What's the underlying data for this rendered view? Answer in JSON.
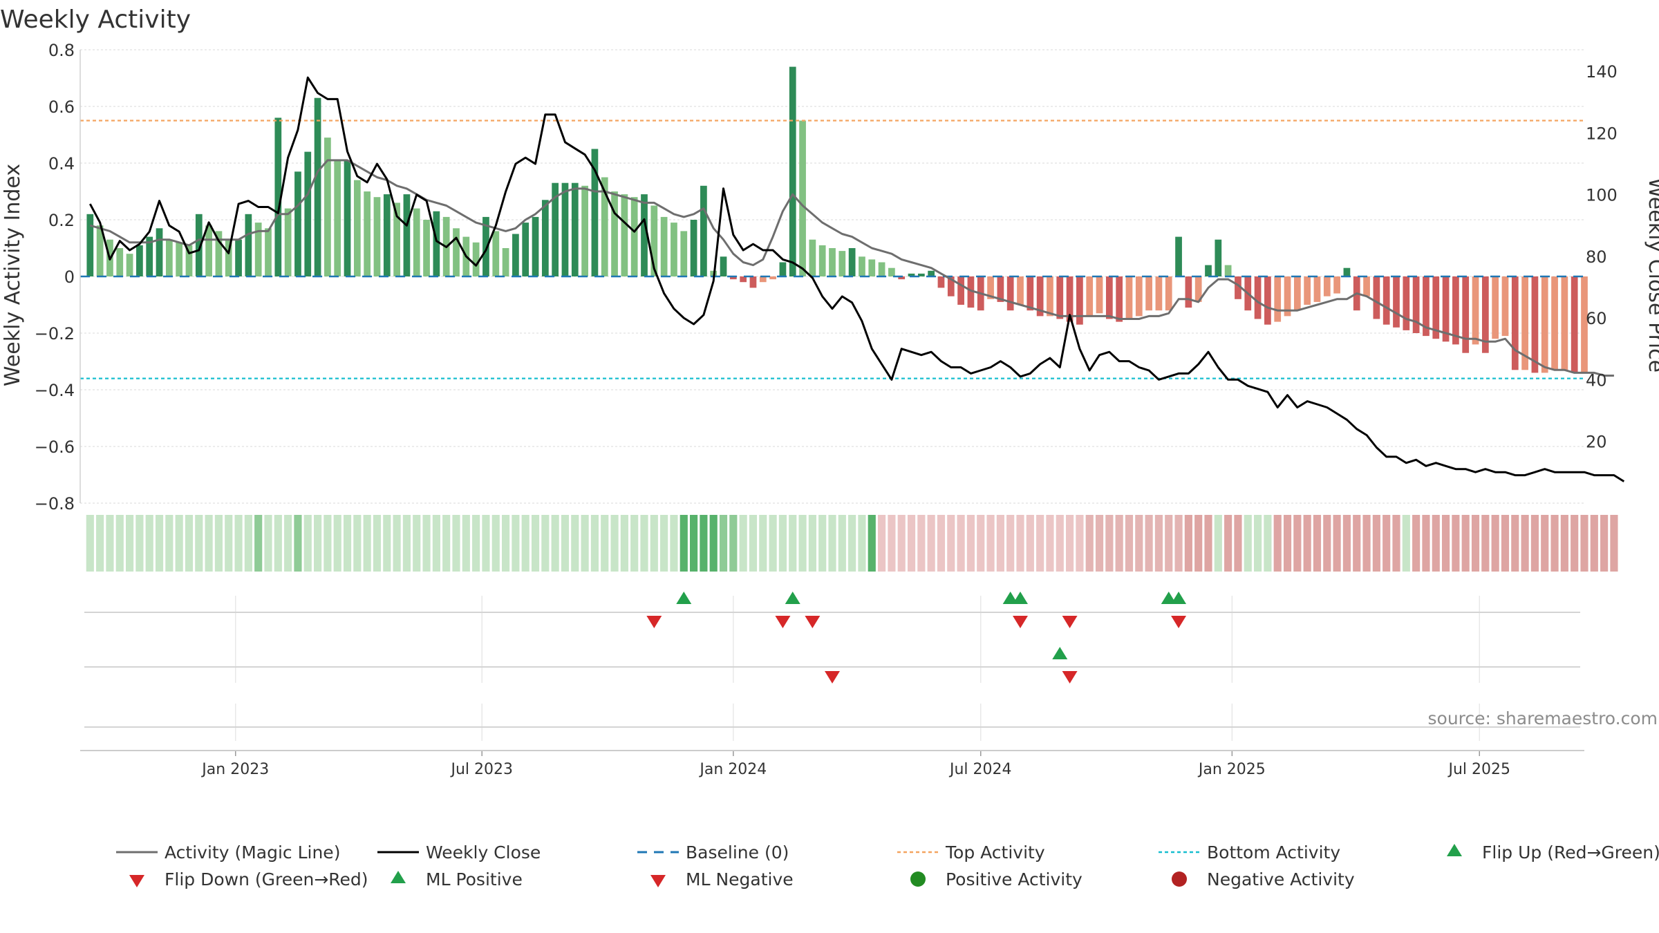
{
  "chart_data": {
    "type": "bar",
    "title": "Weekly Activity",
    "ylabel_left": "Weekly Activity Index",
    "ylabel_right": "Weekly Close Price",
    "source": "source: sharemaestro.com",
    "ylim_left": [
      -0.8,
      0.8
    ],
    "ylim_right": [
      -0.0465,
      147
    ],
    "yticks_left": [
      "0.8",
      "0.6",
      "0.4",
      "0.2",
      "0",
      "−0.2",
      "−0.4",
      "−0.6",
      "−0.8"
    ],
    "yticks_left_values": [
      0.8,
      0.6,
      0.4,
      0.2,
      0,
      -0.2,
      -0.4,
      -0.6,
      -0.8
    ],
    "yticks_right": [
      "140",
      "120",
      "100",
      "80",
      "60",
      "40",
      "20"
    ],
    "yticks_right_values": [
      140,
      120,
      100,
      80,
      60,
      40,
      20
    ],
    "x_range_weeks": [
      0,
      151
    ],
    "xticks": [
      {
        "label": "Jan 2023",
        "week": 14.7
      },
      {
        "label": "Jul 2023",
        "week": 39.6
      },
      {
        "label": "Jan 2024",
        "week": 65.0
      },
      {
        "label": "Jul 2024",
        "week": 90.0
      },
      {
        "label": "Jan 2025",
        "week": 115.4
      },
      {
        "label": "Jul 2025",
        "week": 140.4
      }
    ],
    "top_activity": 0.55,
    "bottom_activity": -0.36,
    "baseline": 0,
    "weekly_activity": [
      0.22,
      0.18,
      0.13,
      0.1,
      0.08,
      0.11,
      0.14,
      0.17,
      0.13,
      0.12,
      0.11,
      0.22,
      0.18,
      0.16,
      0.13,
      0.13,
      0.22,
      0.19,
      0.17,
      0.56,
      0.24,
      0.37,
      0.44,
      0.63,
      0.49,
      0.41,
      0.41,
      0.34,
      0.3,
      0.28,
      0.29,
      0.26,
      0.29,
      0.24,
      0.2,
      0.23,
      0.21,
      0.17,
      0.14,
      0.12,
      0.21,
      0.16,
      0.1,
      0.15,
      0.19,
      0.21,
      0.27,
      0.33,
      0.33,
      0.33,
      0.32,
      0.45,
      0.35,
      0.3,
      0.29,
      0.28,
      0.29,
      0.25,
      0.21,
      0.19,
      0.16,
      0.2,
      0.32,
      0.02,
      0.07,
      -0.01,
      -0.02,
      -0.04,
      -0.02,
      -0.01,
      0.05,
      0.74,
      0.55,
      0.13,
      0.11,
      0.1,
      0.09,
      0.1,
      0.07,
      0.06,
      0.05,
      0.03,
      -0.01,
      0.01,
      0.01,
      0.02,
      -0.04,
      -0.07,
      -0.1,
      -0.11,
      -0.12,
      -0.08,
      -0.09,
      -0.12,
      -0.1,
      -0.12,
      -0.14,
      -0.14,
      -0.15,
      -0.16,
      -0.17,
      -0.14,
      -0.13,
      -0.15,
      -0.16,
      -0.15,
      -0.14,
      -0.12,
      -0.12,
      -0.12,
      0.14,
      -0.11,
      -0.09,
      0.04,
      0.13,
      0.04,
      -0.08,
      -0.12,
      -0.15,
      -0.17,
      -0.16,
      -0.14,
      -0.12,
      -0.1,
      -0.09,
      -0.07,
      -0.06,
      0.03,
      -0.12,
      -0.07,
      -0.15,
      -0.17,
      -0.18,
      -0.19,
      -0.2,
      -0.21,
      -0.22,
      -0.23,
      -0.24,
      -0.27,
      -0.24,
      -0.27,
      -0.22,
      -0.21,
      -0.33,
      -0.33,
      -0.34,
      -0.34,
      -0.33,
      -0.33,
      -0.34,
      -0.34
    ],
    "magic_line": [
      0.18,
      0.17,
      0.16,
      0.14,
      0.12,
      0.12,
      0.12,
      0.13,
      0.13,
      0.12,
      0.11,
      0.13,
      0.13,
      0.13,
      0.13,
      0.13,
      0.15,
      0.16,
      0.16,
      0.22,
      0.22,
      0.25,
      0.29,
      0.37,
      0.41,
      0.41,
      0.41,
      0.39,
      0.37,
      0.35,
      0.34,
      0.32,
      0.31,
      0.29,
      0.27,
      0.26,
      0.25,
      0.23,
      0.21,
      0.19,
      0.18,
      0.17,
      0.16,
      0.17,
      0.2,
      0.22,
      0.25,
      0.28,
      0.3,
      0.31,
      0.31,
      0.3,
      0.3,
      0.29,
      0.28,
      0.27,
      0.26,
      0.26,
      0.24,
      0.22,
      0.21,
      0.22,
      0.24,
      0.17,
      0.13,
      0.08,
      0.05,
      0.04,
      0.06,
      0.14,
      0.23,
      0.29,
      0.25,
      0.22,
      0.19,
      0.17,
      0.15,
      0.14,
      0.12,
      0.1,
      0.09,
      0.08,
      0.06,
      0.05,
      0.04,
      0.03,
      0.01,
      -0.01,
      -0.03,
      -0.05,
      -0.06,
      -0.07,
      -0.08,
      -0.09,
      -0.1,
      -0.11,
      -0.12,
      -0.13,
      -0.14,
      -0.14,
      -0.14,
      -0.14,
      -0.14,
      -0.14,
      -0.15,
      -0.15,
      -0.15,
      -0.14,
      -0.14,
      -0.13,
      -0.08,
      -0.08,
      -0.09,
      -0.04,
      -0.01,
      -0.01,
      -0.03,
      -0.06,
      -0.09,
      -0.11,
      -0.12,
      -0.12,
      -0.12,
      -0.11,
      -0.1,
      -0.09,
      -0.08,
      -0.08,
      -0.06,
      -0.07,
      -0.09,
      -0.11,
      -0.13,
      -0.15,
      -0.16,
      -0.18,
      -0.19,
      -0.2,
      -0.21,
      -0.22,
      -0.22,
      -0.23,
      -0.23,
      -0.22,
      -0.26,
      -0.28,
      -0.3,
      -0.32,
      -0.33,
      -0.33,
      -0.34,
      -0.34,
      -0.34,
      -0.35,
      -0.35
    ],
    "weekly_close": [
      97,
      91,
      79,
      85,
      82,
      84,
      88,
      98,
      90,
      88,
      81,
      82,
      91,
      85,
      81,
      97,
      98,
      96,
      96,
      94,
      112,
      121,
      138,
      133,
      131,
      131,
      114,
      106,
      104,
      110,
      105,
      93,
      90,
      100,
      98,
      85,
      83,
      86,
      80,
      77,
      82,
      90,
      101,
      110,
      112,
      110,
      126,
      126,
      117,
      115,
      113,
      108,
      101,
      94,
      91,
      88,
      92,
      76,
      68,
      63,
      60,
      58,
      61,
      72,
      102,
      87,
      82,
      84,
      82,
      82,
      79,
      78,
      76,
      73,
      67,
      63,
      67,
      65,
      59,
      50,
      45,
      40,
      50,
      49,
      48,
      49,
      46,
      44,
      44,
      42,
      43,
      44,
      46,
      44,
      41,
      42,
      45,
      47,
      44,
      61,
      50,
      43,
      48,
      49,
      46,
      46,
      44,
      43,
      40,
      41,
      42,
      42,
      45,
      49,
      44,
      40,
      40,
      38,
      37,
      36,
      31,
      35,
      31,
      33,
      32,
      31,
      29,
      27,
      24,
      22,
      18,
      15,
      15,
      13,
      14,
      12,
      13,
      12,
      11,
      11,
      10,
      11,
      10,
      10,
      9,
      9,
      10,
      11,
      10,
      10,
      10,
      10,
      9,
      9,
      9,
      7
    ],
    "ml_strip": [
      0,
      0,
      0,
      0,
      0,
      0,
      0,
      0,
      0,
      0,
      0,
      0,
      0,
      0,
      0,
      0,
      0,
      1,
      0,
      0,
      0,
      1,
      0,
      0,
      0,
      0,
      0,
      0,
      0,
      0,
      0,
      0,
      0,
      0,
      0,
      0,
      0,
      0,
      0,
      0,
      0,
      0,
      0,
      0,
      0,
      0,
      0,
      0,
      0,
      0,
      0,
      0,
      0,
      0,
      0,
      0,
      0,
      0,
      0,
      0,
      2,
      2,
      2,
      2,
      1,
      1,
      0,
      0,
      0,
      0,
      0,
      0,
      0,
      0,
      0,
      0,
      0,
      0,
      0,
      2,
      3,
      3,
      3,
      3,
      3,
      3,
      3,
      3,
      3,
      3,
      3,
      3,
      3,
      3,
      3,
      3,
      3,
      3,
      3,
      3,
      3,
      3,
      3,
      3,
      3,
      3,
      3,
      3,
      3,
      3,
      3,
      3,
      3,
      3,
      0,
      3,
      3,
      0,
      0,
      0,
      3,
      3,
      3,
      3,
      3,
      3,
      3,
      3,
      3,
      3,
      3,
      3,
      3,
      0,
      3,
      3,
      3,
      3,
      3,
      3,
      3,
      3,
      3,
      3,
      3,
      3,
      3,
      3,
      3,
      3,
      3,
      3,
      3,
      3,
      3
    ],
    "flip_up_weeks": [
      60,
      71,
      93,
      94,
      109,
      110
    ],
    "flip_down_weeks": [
      57,
      70,
      73,
      94,
      99,
      110
    ],
    "ml_positive_weeks": [
      98
    ],
    "ml_negative_weeks": [
      75,
      99
    ],
    "legend": [
      "Activity (Magic Line)",
      "Weekly Close",
      "Baseline (0)",
      "Top Activity",
      "Bottom Activity",
      "Flip Up (Red→Green)",
      "Flip Down (Green→Red)",
      "ML Positive",
      "ML Negative",
      "Positive Activity",
      "Negative Activity"
    ]
  },
  "colors": {
    "pos_dark": "#2e8b57",
    "pos_light": "#82c182",
    "neg_dark": "#cd5c5c",
    "neg_light": "#e9967a",
    "magic_line": "#6e6e6e",
    "close_line": "#000000",
    "baseline": "#1f77b4",
    "top": "#f4a460",
    "bottom": "#17becf",
    "flip_up": "#22a04b",
    "flip_down": "#d62728",
    "pos_activity": "#228b22",
    "neg_activity": "#b22222",
    "grid": "#e6e6e6"
  }
}
